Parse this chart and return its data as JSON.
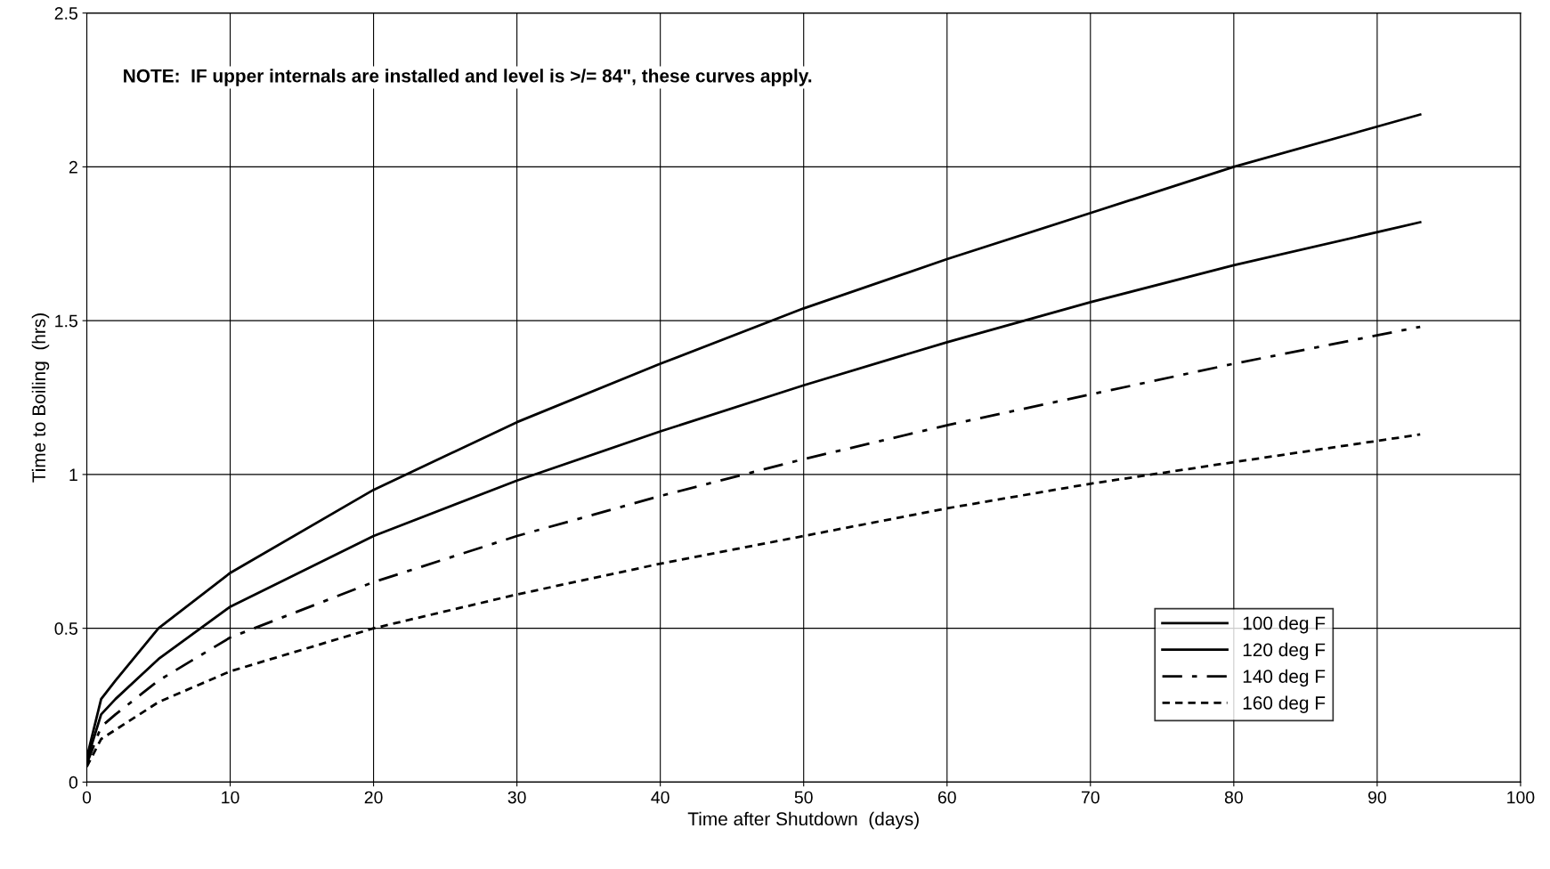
{
  "chart_data": {
    "type": "line",
    "xlabel": "Time after Shutdown  (days)",
    "ylabel": "Time to Boiling  (hrs)",
    "annotations": [
      "NOTE:  IF upper internals are installed and level is >/= 84\", these curves apply."
    ],
    "x": [
      0,
      1,
      2,
      5,
      10,
      20,
      30,
      40,
      50,
      60,
      70,
      80,
      93
    ],
    "series": [
      {
        "name": "100 deg F",
        "color": "#000000",
        "line_style": "solid",
        "values": [
          0.08,
          0.27,
          0.33,
          0.5,
          0.68,
          0.95,
          1.17,
          1.36,
          1.54,
          1.7,
          1.85,
          2.0,
          2.17
        ]
      },
      {
        "name": "120 deg F",
        "color": "#000000",
        "line_style": "solid",
        "values": [
          0.07,
          0.22,
          0.27,
          0.4,
          0.57,
          0.8,
          0.98,
          1.14,
          1.29,
          1.43,
          1.56,
          1.68,
          1.82
        ]
      },
      {
        "name": "140 deg F",
        "color": "#000000",
        "line_style": "dashed",
        "values": [
          0.06,
          0.18,
          0.22,
          0.33,
          0.47,
          0.65,
          0.8,
          0.93,
          1.05,
          1.16,
          1.26,
          1.36,
          1.48
        ]
      },
      {
        "name": "160 deg F",
        "color": "#000000",
        "line_style": "dotted",
        "values": [
          0.05,
          0.14,
          0.17,
          0.26,
          0.36,
          0.5,
          0.61,
          0.71,
          0.8,
          0.89,
          0.97,
          1.04,
          1.13
        ]
      }
    ],
    "xlim": [
      0,
      100
    ],
    "xticks": [
      0,
      10,
      20,
      30,
      40,
      50,
      60,
      70,
      80,
      90,
      100
    ],
    "ylim": [
      0,
      2.5
    ],
    "yticks": [
      0,
      0.5,
      1,
      1.5,
      2,
      2.5
    ],
    "grid": true,
    "legend": "bottom right",
    "marker": "none"
  }
}
